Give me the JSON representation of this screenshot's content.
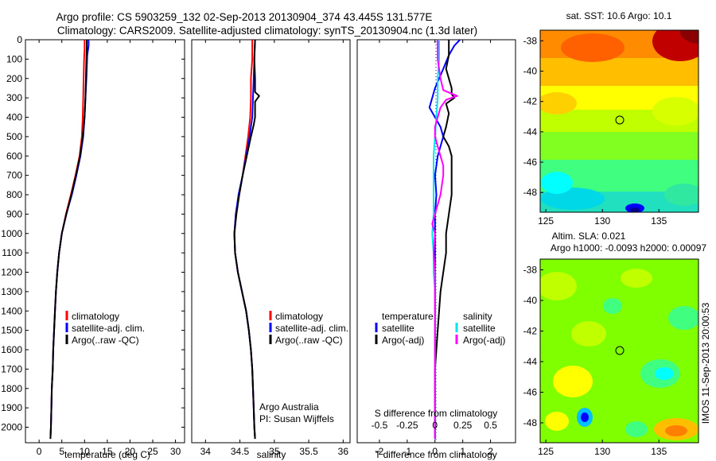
{
  "figure": {
    "title_line1": "Argo profile: CS 5903259_132 02-Sep-2013 20130904_374 43.445S 131.577E",
    "title_line2": "Climatology: CARS2009. Satellite-adjusted climatology: synTS_20130904.nc (1.3d later)",
    "colors": {
      "climatology": "#ff0000",
      "satellite": "#0000ff",
      "argo": "#000000",
      "magenta": "#ff00ff",
      "cyan": "#00e5ee",
      "dotted": "#0000aa"
    }
  },
  "chart_data": [
    {
      "type": "line",
      "xlabel": "temperature (deg C)",
      "ylabel": "",
      "xlim": [
        -3,
        32
      ],
      "ylim": [
        2080,
        0
      ],
      "xticks": [
        0,
        5,
        10,
        15,
        20,
        25,
        30
      ],
      "yticks": [
        0,
        100,
        200,
        300,
        400,
        500,
        600,
        700,
        800,
        900,
        1000,
        1100,
        1200,
        1300,
        1400,
        1500,
        1600,
        1700,
        1800,
        1900,
        2000
      ],
      "legend": [
        "climatology",
        "satellite-adj. clim.",
        "Argo(..raw -QC)"
      ],
      "legend_placement": "bottom-center",
      "series": [
        {
          "name": "climatology",
          "color": "#ff0000",
          "points": [
            [
              10.0,
              0
            ],
            [
              10.0,
              50
            ],
            [
              9.9,
              100
            ],
            [
              9.8,
              200
            ],
            [
              9.7,
              300
            ],
            [
              9.6,
              400
            ],
            [
              9.4,
              500
            ],
            [
              8.9,
              600
            ],
            [
              8.0,
              700
            ],
            [
              7.0,
              800
            ],
            [
              5.9,
              900
            ],
            [
              5.0,
              1000
            ],
            [
              4.4,
              1100
            ],
            [
              4.0,
              1200
            ],
            [
              3.7,
              1300
            ],
            [
              3.5,
              1400
            ],
            [
              3.3,
              1500
            ],
            [
              3.1,
              1600
            ],
            [
              3.0,
              1700
            ],
            [
              2.8,
              1800
            ],
            [
              2.7,
              1900
            ],
            [
              2.6,
              2000
            ],
            [
              2.5,
              2060
            ]
          ]
        },
        {
          "name": "satellite-adj. clim.",
          "color": "#0000ff",
          "points": [
            [
              10.9,
              0
            ],
            [
              10.9,
              30
            ],
            [
              10.6,
              80
            ],
            [
              10.4,
              200
            ],
            [
              10.2,
              300
            ],
            [
              10.0,
              400
            ],
            [
              9.7,
              500
            ],
            [
              9.1,
              600
            ],
            [
              8.2,
              700
            ],
            [
              7.2,
              800
            ],
            [
              6.0,
              900
            ],
            [
              5.0,
              1000
            ],
            [
              4.4,
              1100
            ],
            [
              4.0,
              1200
            ],
            [
              3.7,
              1300
            ],
            [
              3.5,
              1400
            ],
            [
              3.3,
              1500
            ],
            [
              3.1,
              1600
            ],
            [
              3.0,
              1700
            ],
            [
              2.8,
              1800
            ],
            [
              2.7,
              1900
            ],
            [
              2.6,
              2000
            ],
            [
              2.5,
              2060
            ]
          ]
        },
        {
          "name": "Argo(..raw -QC)",
          "color": "#000000",
          "points": [
            [
              10.5,
              0
            ],
            [
              10.5,
              30
            ],
            [
              10.4,
              100
            ],
            [
              10.3,
              200
            ],
            [
              10.2,
              300
            ],
            [
              10.0,
              400
            ],
            [
              9.6,
              500
            ],
            [
              9.0,
              600
            ],
            [
              8.1,
              700
            ],
            [
              7.1,
              800
            ],
            [
              6.0,
              900
            ],
            [
              5.0,
              1000
            ],
            [
              4.4,
              1100
            ],
            [
              4.0,
              1200
            ],
            [
              3.7,
              1300
            ],
            [
              3.5,
              1400
            ],
            [
              3.3,
              1500
            ],
            [
              3.1,
              1600
            ],
            [
              3.0,
              1700
            ],
            [
              2.8,
              1800
            ],
            [
              2.7,
              1900
            ],
            [
              2.6,
              2000
            ],
            [
              2.5,
              2060
            ]
          ]
        }
      ]
    },
    {
      "type": "line",
      "xlabel": "salinity",
      "xlim": [
        33.8,
        36.1
      ],
      "ylim": [
        2080,
        0
      ],
      "xticks": [
        34,
        34.5,
        35,
        35.5,
        36
      ],
      "legend": [
        "climatology",
        "satellite-adj. clim.",
        "Argo(..raw -QC)"
      ],
      "legend_placement": "bottom-right",
      "annotation_line1": "Argo Australia",
      "annotation_line2": "PI: Susan Wijffels",
      "series": [
        {
          "name": "climatology",
          "color": "#ff0000",
          "points": [
            [
              34.68,
              0
            ],
            [
              34.68,
              100
            ],
            [
              34.66,
              200
            ],
            [
              34.66,
              300
            ],
            [
              34.65,
              400
            ],
            [
              34.62,
              500
            ],
            [
              34.58,
              600
            ],
            [
              34.54,
              700
            ],
            [
              34.49,
              800
            ],
            [
              34.44,
              900
            ],
            [
              34.42,
              1000
            ],
            [
              34.43,
              1100
            ],
            [
              34.47,
              1200
            ],
            [
              34.53,
              1300
            ],
            [
              34.59,
              1400
            ],
            [
              34.63,
              1500
            ],
            [
              34.66,
              1600
            ],
            [
              34.68,
              1700
            ],
            [
              34.69,
              1800
            ],
            [
              34.7,
              1900
            ],
            [
              34.71,
              2000
            ],
            [
              34.72,
              2060
            ]
          ]
        },
        {
          "name": "satellite-adj. clim.",
          "color": "#0000ff",
          "points": [
            [
              34.72,
              0
            ],
            [
              34.71,
              100
            ],
            [
              34.7,
              200
            ],
            [
              34.69,
              300
            ],
            [
              34.68,
              400
            ],
            [
              34.64,
              500
            ],
            [
              34.59,
              600
            ],
            [
              34.54,
              700
            ],
            [
              34.48,
              800
            ],
            [
              34.44,
              900
            ],
            [
              34.42,
              1000
            ],
            [
              34.43,
              1100
            ],
            [
              34.47,
              1200
            ],
            [
              34.53,
              1300
            ],
            [
              34.59,
              1400
            ],
            [
              34.63,
              1500
            ],
            [
              34.66,
              1600
            ],
            [
              34.68,
              1700
            ],
            [
              34.69,
              1800
            ],
            [
              34.7,
              1900
            ],
            [
              34.71,
              2000
            ],
            [
              34.72,
              2060
            ]
          ]
        },
        {
          "name": "Argo(..raw -QC)",
          "color": "#000000",
          "points": [
            [
              34.72,
              0
            ],
            [
              34.71,
              100
            ],
            [
              34.72,
              200
            ],
            [
              34.72,
              270
            ],
            [
              34.78,
              290
            ],
            [
              34.72,
              320
            ],
            [
              34.72,
              400
            ],
            [
              34.7,
              440
            ],
            [
              34.66,
              500
            ],
            [
              34.6,
              600
            ],
            [
              34.54,
              700
            ],
            [
              34.49,
              800
            ],
            [
              34.45,
              900
            ],
            [
              34.42,
              1000
            ],
            [
              34.43,
              1100
            ],
            [
              34.47,
              1200
            ],
            [
              34.53,
              1300
            ],
            [
              34.59,
              1400
            ],
            [
              34.63,
              1500
            ],
            [
              34.66,
              1600
            ],
            [
              34.68,
              1700
            ],
            [
              34.69,
              1800
            ],
            [
              34.7,
              1900
            ],
            [
              34.71,
              2000
            ],
            [
              34.72,
              2060
            ]
          ]
        }
      ]
    },
    {
      "type": "line",
      "xlabel": "T difference from climatology",
      "top_axis_label": "S difference from climatology",
      "xlim": [
        -2.8,
        2.9
      ],
      "ylim": [
        2080,
        0
      ],
      "xticks": [
        -2,
        -1,
        0,
        1,
        2
      ],
      "xticks_top": [
        "-0.5",
        "-0.25",
        "0",
        "0.25",
        "0.5"
      ],
      "xticks_top_values": [
        -2,
        -1,
        0,
        1,
        2
      ],
      "legend": [
        "temperature",
        "satellite",
        "Argo(-adj)",
        "salinity",
        "satellite",
        "Argo(-adj)"
      ],
      "legend_placement": "bottom-center",
      "series": [
        {
          "name": "satellite",
          "color": "#0000ff",
          "points": [
            [
              0.9,
              0
            ],
            [
              0.7,
              30
            ],
            [
              0.5,
              80
            ],
            [
              0.3,
              150
            ],
            [
              0.0,
              250
            ],
            [
              -0.1,
              300
            ],
            [
              -0.2,
              350
            ],
            [
              0.0,
              400
            ],
            [
              0.2,
              450
            ],
            [
              0.3,
              500
            ],
            [
              0.2,
              550
            ],
            [
              0.1,
              600
            ],
            [
              0.0,
              700
            ],
            [
              0.05,
              800
            ],
            [
              0.0,
              900
            ],
            [
              0.0,
              1000
            ],
            [
              0.0,
              1200
            ],
            [
              0.0,
              1500
            ],
            [
              0.0,
              2060
            ]
          ]
        },
        {
          "name": "Argo(-adj)",
          "color": "#000000",
          "points": [
            [
              0.5,
              0
            ],
            [
              0.5,
              80
            ],
            [
              0.4,
              150
            ],
            [
              0.5,
              200
            ],
            [
              0.6,
              250
            ],
            [
              0.6,
              280
            ],
            [
              0.7,
              300
            ],
            [
              0.4,
              330
            ],
            [
              0.5,
              380
            ],
            [
              0.4,
              450
            ],
            [
              0.3,
              500
            ],
            [
              0.5,
              550
            ],
            [
              0.6,
              600
            ],
            [
              0.6,
              700
            ],
            [
              0.6,
              800
            ],
            [
              0.5,
              900
            ],
            [
              0.4,
              1000
            ],
            [
              0.4,
              1100
            ],
            [
              0.3,
              1200
            ],
            [
              0.2,
              1300
            ],
            [
              0.1,
              1500
            ],
            [
              0.0,
              1700
            ],
            [
              0.0,
              2060
            ]
          ]
        },
        {
          "name": "satellite",
          "color": "#00e5ee",
          "points": [
            [
              0.15,
              0
            ],
            [
              0.15,
              100
            ],
            [
              0.1,
              200
            ],
            [
              0.1,
              300
            ],
            [
              0.05,
              400
            ],
            [
              0.0,
              500
            ],
            [
              -0.05,
              600
            ],
            [
              -0.05,
              700
            ],
            [
              -0.05,
              800
            ],
            [
              -0.05,
              900
            ],
            [
              -0.1,
              1000
            ],
            [
              -0.05,
              1100
            ],
            [
              -0.05,
              1200
            ],
            [
              0.0,
              1300
            ],
            [
              0.0,
              1400
            ],
            [
              0.0,
              1500
            ],
            [
              0.0,
              2060
            ]
          ]
        },
        {
          "name": "Argo(-adj)",
          "color": "#ff00ff",
          "points": [
            [
              0.1,
              0
            ],
            [
              0.1,
              100
            ],
            [
              0.2,
              200
            ],
            [
              0.3,
              260
            ],
            [
              0.8,
              290
            ],
            [
              0.4,
              310
            ],
            [
              0.2,
              350
            ],
            [
              0.1,
              400
            ],
            [
              0.0,
              450
            ],
            [
              0.0,
              500
            ],
            [
              0.1,
              550
            ],
            [
              0.2,
              600
            ],
            [
              0.3,
              650
            ],
            [
              0.3,
              700
            ],
            [
              0.2,
              800
            ],
            [
              0.0,
              900
            ],
            [
              -0.1,
              950
            ],
            [
              0.0,
              1000
            ],
            [
              -0.05,
              1100
            ],
            [
              0.0,
              1200
            ],
            [
              0.0,
              1300
            ],
            [
              0.0,
              1500
            ],
            [
              0.0,
              2060
            ]
          ]
        }
      ]
    },
    {
      "type": "heatmap",
      "title": "sat. SST: 10.6 Argo: 10.1",
      "xlim": [
        124.5,
        138.5
      ],
      "ylim": [
        -49.3,
        -37.3
      ],
      "xticks": [
        125,
        130,
        135
      ],
      "yticks": [
        -38,
        -40,
        -42,
        -44,
        -46,
        -48
      ],
      "marker": {
        "lon": 131.577,
        "lat": -43.445
      },
      "colormap": [
        "#00008f",
        "#0000ff",
        "#00bfff",
        "#00ffff",
        "#40ff80",
        "#7fff00",
        "#bfff00",
        "#ffff00",
        "#ffbf00",
        "#ff8000",
        "#ff4000",
        "#c00000",
        "#8b0000"
      ]
    },
    {
      "type": "heatmap",
      "title_line1": "Altim. SLA: 0.021",
      "title_line2": "Argo h1000: -0.0093 h2000: 0.00097",
      "xlim": [
        124.5,
        138.5
      ],
      "ylim": [
        -49.3,
        -37.3
      ],
      "xticks": [
        125,
        130,
        135
      ],
      "yticks": [
        -38,
        -40,
        -42,
        -44,
        -46,
        -48
      ],
      "marker": {
        "lon": 131.577,
        "lat": -43.445
      },
      "side_label": "IMOS 11-Sep-2013 20:00:53",
      "colormap": [
        "#0000ff",
        "#00bfff",
        "#00ffff",
        "#40ff80",
        "#7fff00",
        "#bfff00",
        "#ffff00",
        "#ffbf00",
        "#ff8000"
      ]
    }
  ]
}
